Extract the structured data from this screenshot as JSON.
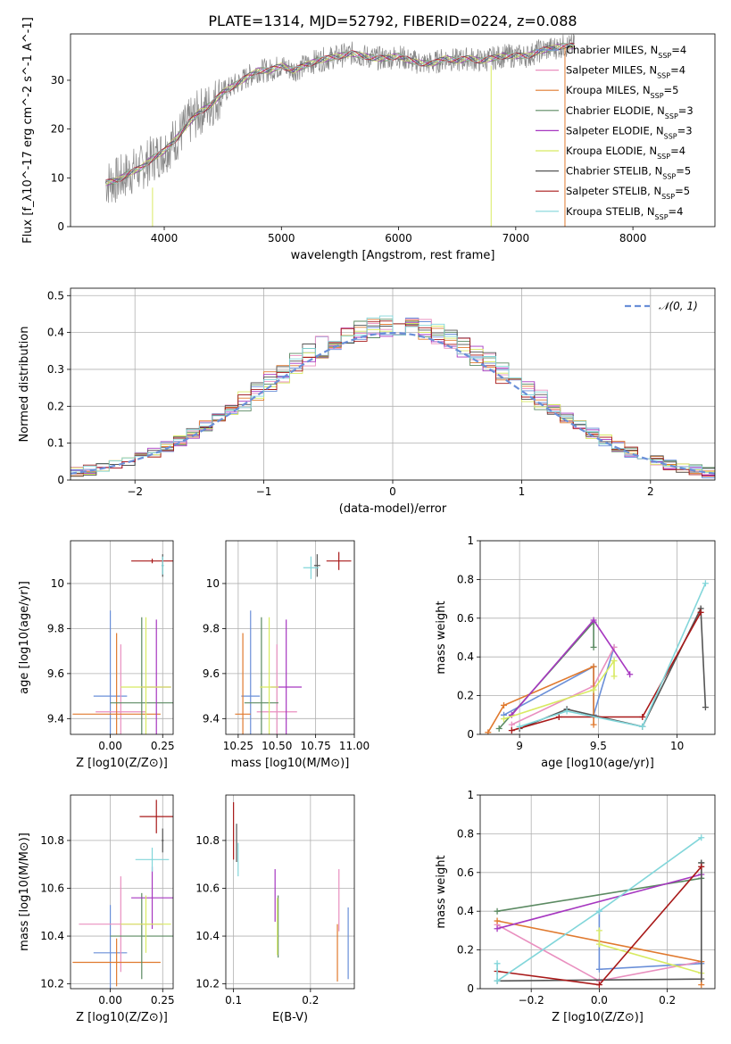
{
  "figure": {
    "title": "PLATE=1314, MJD=52792, FIBERID=0224, z=0.088"
  },
  "series_colors": [
    {
      "name": "Chabrier MILES",
      "nssp": "4",
      "color": "#6a8fd8"
    },
    {
      "name": "Salpeter MILES",
      "nssp": "4",
      "color": "#e98fbf"
    },
    {
      "name": "Kroupa MILES",
      "nssp": "5",
      "color": "#e07a2f"
    },
    {
      "name": "Chabrier ELODIE",
      "nssp": "3",
      "color": "#5b8a62"
    },
    {
      "name": "Salpeter ELODIE",
      "nssp": "3",
      "color": "#a637c0"
    },
    {
      "name": "Kroupa ELODIE",
      "nssp": "4",
      "color": "#d8ea62"
    },
    {
      "name": "Chabrier STELIB",
      "nssp": "5",
      "color": "#555555"
    },
    {
      "name": "Salpeter STELIB",
      "nssp": "5",
      "color": "#a81919"
    },
    {
      "name": "Kroupa STELIB",
      "nssp": "4",
      "color": "#82d6da"
    }
  ],
  "chart_data": [
    {
      "id": "spectrum",
      "type": "line",
      "xlabel": "wavelength [Angstrom, rest frame]",
      "ylabel": "Flux [f_λ10^-17 erg cm^-2 s^-1 A^-1]",
      "xlim": [
        3200,
        8700
      ],
      "ylim": [
        0,
        39.5
      ],
      "xticks": [
        4000,
        5000,
        6000,
        7000,
        8000
      ],
      "yticks": [
        0,
        10,
        20,
        30
      ],
      "legend_position": "top-right",
      "legend_entries": [
        "Chabrier MILES, N_SSP=4",
        "Salpeter MILES, N_SSP=4",
        "Kroupa MILES, N_SSP=5",
        "Chabrier ELODIE, N_SSP=3",
        "Salpeter ELODIE, N_SSP=3",
        "Kroupa ELODIE, N_SSP=4",
        "Chabrier STELIB, N_SSP=5",
        "Salpeter STELIB, N_SSP=5",
        "Kroupa STELIB, N_SSP=4"
      ],
      "data_curve": {
        "x": [
          3500,
          3600,
          3700,
          3800,
          3900,
          4000,
          4100,
          4200,
          4300,
          4400,
          4500,
          4600,
          4700,
          4800,
          4900,
          5000,
          5100,
          5200,
          5300,
          5400,
          5500,
          5600,
          5700,
          5800,
          5900,
          6000,
          6100,
          6200,
          6300,
          6400,
          6500,
          6600,
          6700,
          6800,
          6900,
          7000,
          7100,
          7200,
          7300,
          7400,
          7500
        ],
        "y": [
          9,
          9.5,
          11,
          12,
          14,
          15.5,
          18,
          21,
          23.5,
          25,
          27.5,
          29,
          30.5,
          32,
          32,
          33,
          32,
          33,
          34,
          34.5,
          35,
          35.5,
          35,
          34.5,
          34.5,
          35,
          34,
          33.5,
          33.5,
          34.5,
          34,
          34.5,
          34,
          34.5,
          35,
          35,
          35,
          36,
          36.5,
          37,
          37
        ]
      },
      "model_vertical_lines": [
        {
          "x": 3900,
          "ylow": 0,
          "yhigh": 8,
          "color": "#d8ea62"
        },
        {
          "x": 6790,
          "ylow": 0,
          "yhigh": 33,
          "color": "#d8ea62"
        },
        {
          "x": 7420,
          "ylow": 0,
          "yhigh": 37,
          "color": "#e07a2f"
        }
      ]
    },
    {
      "id": "residuals",
      "type": "line",
      "xlabel": "(data-model)/error",
      "ylabel": "Normed distribution",
      "xlim": [
        -2.5,
        2.5
      ],
      "ylim": [
        0,
        0.52
      ],
      "xticks": [
        -2,
        -1,
        0,
        1,
        2
      ],
      "yticks": [
        0.0,
        0.1,
        0.2,
        0.3,
        0.4,
        0.5
      ],
      "legend_entries": [
        "𝒩(0, 1)"
      ],
      "legend_position": "top-right",
      "histogram_bin_width": 0.1,
      "histogram_x_range": [
        -2.5,
        2.5
      ],
      "gaussian": {
        "mean": 0,
        "sigma": 1,
        "style": "dashed",
        "color": "#6a8fd8"
      }
    },
    {
      "id": "age-vs-Z",
      "type": "scatter",
      "xlabel": "Z [log10(Z/Z⊙)]",
      "ylabel": "age  [log10(age/yr)]",
      "xlim": [
        -0.19,
        0.3
      ],
      "ylim": [
        9.33,
        10.19
      ],
      "xticks": [
        0.0,
        0.25
      ],
      "xtick_labels": [
        "0.00",
        "0.25"
      ],
      "yticks": [
        9.4,
        9.6,
        9.8,
        10.0
      ],
      "points": [
        {
          "series": "Chabrier MILES",
          "x": 0.0,
          "xerr": 0.08,
          "y": 9.5,
          "yerr": 0.38
        },
        {
          "series": "Salpeter MILES",
          "x": 0.05,
          "xerr": 0.12,
          "y": 9.43,
          "yerr": 0.3
        },
        {
          "series": "Kroupa MILES",
          "x": 0.03,
          "xerr": 0.21,
          "y": 9.42,
          "yerr": 0.36
        },
        {
          "series": "Chabrier ELODIE",
          "x": 0.15,
          "xerr": 0.15,
          "y": 9.47,
          "yerr": 0.38
        },
        {
          "series": "Salpeter ELODIE",
          "x": 0.22,
          "xerr": 0.07,
          "y": 9.54,
          "yerr": 0.3
        },
        {
          "series": "Kroupa ELODIE",
          "x": 0.17,
          "xerr": 0.12,
          "y": 9.54,
          "yerr": 0.31
        },
        {
          "series": "Chabrier STELIB",
          "x": 0.25,
          "xerr": 0.005,
          "y": 10.08,
          "yerr": 0.05
        },
        {
          "series": "Salpeter STELIB",
          "x": 0.2,
          "xerr": 0.1,
          "y": 10.1,
          "yerr": 0.01
        },
        {
          "series": "Kroupa STELIB",
          "x": 0.25,
          "xerr": 0.005,
          "y": 10.08,
          "yerr": 0.04
        }
      ]
    },
    {
      "id": "age-vs-mass",
      "type": "scatter",
      "xlabel": "mass [log10(M/M⊙)]",
      "ylabel": "",
      "xlim": [
        10.17,
        11.0
      ],
      "ylim": [
        9.33,
        10.19
      ],
      "xticks": [
        10.25,
        10.5,
        10.75,
        11.0
      ],
      "xtick_labels": [
        "10.25",
        "10.50",
        "10.75",
        "11.00"
      ],
      "yticks": [
        9.4,
        9.6,
        9.8,
        10.0
      ],
      "points": [
        {
          "series": "Chabrier MILES",
          "x": 10.33,
          "xerr": 0.06,
          "y": 9.5,
          "yerr": 0.38
        },
        {
          "series": "Salpeter MILES",
          "x": 10.5,
          "xerr": 0.13,
          "y": 9.43,
          "yerr": 0.3
        },
        {
          "series": "Kroupa MILES",
          "x": 10.28,
          "xerr": 0.05,
          "y": 9.42,
          "yerr": 0.36
        },
        {
          "series": "Chabrier ELODIE",
          "x": 10.4,
          "xerr": 0.11,
          "y": 9.47,
          "yerr": 0.38
        },
        {
          "series": "Salpeter ELODIE",
          "x": 10.56,
          "xerr": 0.1,
          "y": 9.54,
          "yerr": 0.3
        },
        {
          "series": "Kroupa ELODIE",
          "x": 10.45,
          "xerr": 0.06,
          "y": 9.54,
          "yerr": 0.31
        },
        {
          "series": "Chabrier STELIB",
          "x": 10.76,
          "xerr": 0.02,
          "y": 10.08,
          "yerr": 0.05
        },
        {
          "series": "Salpeter STELIB",
          "x": 10.9,
          "xerr": 0.08,
          "y": 10.1,
          "yerr": 0.04
        },
        {
          "series": "Kroupa STELIB",
          "x": 10.72,
          "xerr": 0.05,
          "y": 10.07,
          "yerr": 0.05
        }
      ]
    },
    {
      "id": "mass-weight-vs-age",
      "type": "line",
      "xlabel": "age  [log10(age/yr)]",
      "ylabel": "mass weight",
      "xlim": [
        8.75,
        10.24
      ],
      "ylim": [
        0,
        1.0
      ],
      "xticks": [
        9.0,
        9.5,
        10.0
      ],
      "yticks": [
        0.0,
        0.2,
        0.4,
        0.6,
        0.8,
        1.0
      ],
      "series": [
        {
          "name": "Chabrier MILES",
          "x": [
            8.9,
            9.47,
            9.47,
            9.6
          ],
          "y": [
            0.1,
            0.35,
            0.1,
            0.45
          ]
        },
        {
          "name": "Salpeter MILES",
          "x": [
            8.95,
            9.47,
            9.6
          ],
          "y": [
            0.05,
            0.25,
            0.45
          ]
        },
        {
          "name": "Kroupa MILES",
          "x": [
            8.8,
            8.9,
            9.47,
            9.47
          ],
          "y": [
            0.01,
            0.15,
            0.35,
            0.05
          ]
        },
        {
          "name": "Chabrier ELODIE",
          "x": [
            8.87,
            9.47,
            9.47
          ],
          "y": [
            0.03,
            0.58,
            0.45
          ]
        },
        {
          "name": "Salpeter ELODIE",
          "x": [
            8.95,
            9.47,
            9.7
          ],
          "y": [
            0.1,
            0.59,
            0.31
          ]
        },
        {
          "name": "Kroupa ELODIE",
          "x": [
            8.9,
            9.47,
            9.6,
            9.6
          ],
          "y": [
            0.08,
            0.23,
            0.38,
            0.3
          ]
        },
        {
          "name": "Chabrier STELIB",
          "x": [
            9.0,
            9.3,
            9.78,
            10.15,
            10.18
          ],
          "y": [
            0.03,
            0.13,
            0.04,
            0.65,
            0.14
          ]
        },
        {
          "name": "Salpeter STELIB",
          "x": [
            8.95,
            9.25,
            9.78,
            10.15
          ],
          "y": [
            0.02,
            0.09,
            0.09,
            0.63
          ]
        },
        {
          "name": "Kroupa STELIB",
          "x": [
            9.0,
            9.3,
            9.78,
            10.18
          ],
          "y": [
            0.04,
            0.12,
            0.04,
            0.78
          ]
        }
      ]
    },
    {
      "id": "mass-vs-Z",
      "type": "scatter",
      "xlabel": "Z [log10(Z/Z⊙)]",
      "ylabel": "mass [log10(M/M⊙)]",
      "xlim": [
        -0.19,
        0.3
      ],
      "ylim": [
        10.18,
        10.99
      ],
      "xticks": [
        0.0,
        0.25
      ],
      "xtick_labels": [
        "0.00",
        "0.25"
      ],
      "yticks": [
        10.2,
        10.4,
        10.6,
        10.8
      ],
      "points": [
        {
          "series": "Chabrier MILES",
          "x": 0.0,
          "xerr": 0.08,
          "y": 10.33,
          "yerr": 0.2
        },
        {
          "series": "Salpeter MILES",
          "x": 0.05,
          "xerr": 0.2,
          "y": 10.45,
          "yerr": 0.2
        },
        {
          "series": "Kroupa MILES",
          "x": 0.03,
          "xerr": 0.21,
          "y": 10.29,
          "yerr": 0.1
        },
        {
          "series": "Chabrier ELODIE",
          "x": 0.15,
          "xerr": 0.15,
          "y": 10.4,
          "yerr": 0.18
        },
        {
          "series": "Salpeter ELODIE",
          "x": 0.2,
          "xerr": 0.1,
          "y": 10.56,
          "yerr": 0.13
        },
        {
          "series": "Kroupa ELODIE",
          "x": 0.17,
          "xerr": 0.12,
          "y": 10.45,
          "yerr": 0.12
        },
        {
          "series": "Chabrier STELIB",
          "x": 0.25,
          "xerr": 0.005,
          "y": 10.8,
          "yerr": 0.05
        },
        {
          "series": "Salpeter STELIB",
          "x": 0.22,
          "xerr": 0.08,
          "y": 10.9,
          "yerr": 0.07
        },
        {
          "series": "Kroupa STELIB",
          "x": 0.2,
          "xerr": 0.08,
          "y": 10.72,
          "yerr": 0.05
        }
      ]
    },
    {
      "id": "mass-vs-ebv",
      "type": "scatter",
      "xlabel": "E(B-V)",
      "ylabel": "",
      "xlim": [
        0.09,
        0.257
      ],
      "ylim": [
        10.18,
        10.99
      ],
      "xticks": [
        0.1,
        0.2
      ],
      "xtick_labels": [
        "0.1",
        "0.2"
      ],
      "yticks": [
        10.2,
        10.4,
        10.6,
        10.8
      ],
      "points": [
        {
          "series": "Chabrier MILES",
          "x": 0.249,
          "y": 10.37,
          "yerr": 0.15
        },
        {
          "series": "Salpeter MILES",
          "x": 0.237,
          "y": 10.55,
          "yerr": 0.13
        },
        {
          "series": "Kroupa MILES",
          "x": 0.235,
          "y": 10.33,
          "yerr": 0.12
        },
        {
          "series": "Chabrier ELODIE",
          "x": 0.158,
          "y": 10.44,
          "yerr": 0.13
        },
        {
          "series": "Salpeter ELODIE",
          "x": 0.154,
          "y": 10.57,
          "yerr": 0.11
        },
        {
          "series": "Kroupa ELODIE",
          "x": 0.157,
          "y": 10.44,
          "yerr": 0.12
        },
        {
          "series": "Chabrier STELIB",
          "x": 0.104,
          "y": 10.79,
          "yerr": 0.08
        },
        {
          "series": "Salpeter STELIB",
          "x": 0.1,
          "y": 10.84,
          "yerr": 0.12
        },
        {
          "series": "Kroupa STELIB",
          "x": 0.106,
          "y": 10.72,
          "yerr": 0.07
        }
      ]
    },
    {
      "id": "mass-weight-vs-Z",
      "type": "line",
      "xlabel": "Z [log10(Z/Z⊙)]",
      "ylabel": "mass weight",
      "xlim": [
        -0.35,
        0.34
      ],
      "ylim": [
        0,
        1.0
      ],
      "xticks": [
        -0.2,
        0.0,
        0.2
      ],
      "xtick_labels": [
        "−0.2",
        "0.0",
        "0.2"
      ],
      "yticks": [
        0.0,
        0.2,
        0.4,
        0.6,
        0.8,
        1.0
      ],
      "series": [
        {
          "name": "Chabrier MILES",
          "x": [
            0.0,
            0.0,
            0.3
          ],
          "y": [
            0.4,
            0.1,
            0.13
          ]
        },
        {
          "name": "Salpeter MILES",
          "x": [
            -0.3,
            0.0,
            0.3
          ],
          "y": [
            0.33,
            0.04,
            0.14
          ]
        },
        {
          "name": "Kroupa MILES",
          "x": [
            -0.3,
            0.3,
            0.3
          ],
          "y": [
            0.35,
            0.14,
            0.02
          ]
        },
        {
          "name": "Chabrier ELODIE",
          "x": [
            -0.3,
            0.3,
            0.3
          ],
          "y": [
            0.4,
            0.57,
            0.65
          ]
        },
        {
          "name": "Salpeter ELODIE",
          "x": [
            -0.3,
            0.3
          ],
          "y": [
            0.31,
            0.59
          ]
        },
        {
          "name": "Kroupa ELODIE",
          "x": [
            0.0,
            0.0,
            0.3
          ],
          "y": [
            0.3,
            0.23,
            0.08
          ]
        },
        {
          "name": "Chabrier STELIB",
          "x": [
            -0.3,
            0.3,
            0.3
          ],
          "y": [
            0.04,
            0.05,
            0.65
          ]
        },
        {
          "name": "Salpeter STELIB",
          "x": [
            -0.3,
            0.0,
            0.3
          ],
          "y": [
            0.09,
            0.02,
            0.63
          ]
        },
        {
          "name": "Kroupa STELIB",
          "x": [
            -0.3,
            -0.3,
            0.0,
            0.3
          ],
          "y": [
            0.13,
            0.04,
            0.4,
            0.78
          ]
        }
      ]
    }
  ]
}
